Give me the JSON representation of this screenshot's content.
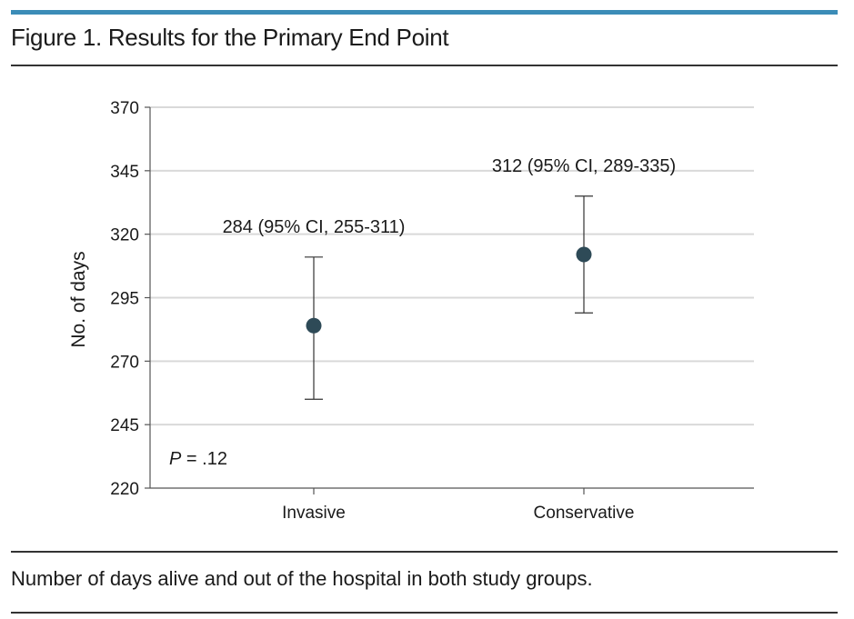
{
  "figure": {
    "title": "Figure 1. Results for the Primary End Point",
    "caption": "Number of days alive and out of the hospital in both study groups."
  },
  "colors": {
    "accent_bar": "#3b8cb7",
    "marker": "#2e4a57",
    "gridline": "#d9d9d9",
    "axis": "#555555"
  },
  "chart_data": {
    "type": "scatter",
    "title": "",
    "xlabel": "",
    "ylabel": "No. of days",
    "ylim": [
      220,
      370
    ],
    "yticks": [
      220,
      245,
      270,
      295,
      320,
      345,
      370
    ],
    "categories": [
      "Invasive",
      "Conservative"
    ],
    "points": [
      {
        "category": "Invasive",
        "value": 284,
        "ci_low": 255,
        "ci_high": 311,
        "label": "284 (95% CI, 255-311)"
      },
      {
        "category": "Conservative",
        "value": 312,
        "ci_low": 289,
        "ci_high": 335,
        "label": "312 (95% CI, 289-335)"
      }
    ],
    "grid": true,
    "annotation": {
      "italic": "P",
      "text": " = .12"
    }
  }
}
